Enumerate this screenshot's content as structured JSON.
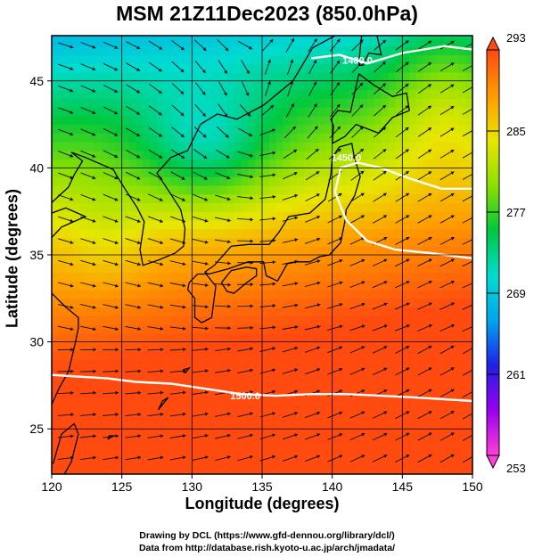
{
  "chart_data": {
    "type": "heatmap",
    "title": "MSM 21Z11Dec2023 (850.0hPa)",
    "xlabel": "Longitude (degrees)",
    "ylabel": "Latitude  (degrees)",
    "xlim": [
      120,
      150
    ],
    "ylim": [
      22.4,
      47.6
    ],
    "x_ticks": [
      "120",
      "125",
      "130",
      "135",
      "140",
      "145",
      "150"
    ],
    "y_ticks": [
      "25",
      "30",
      "35",
      "40",
      "45"
    ],
    "colorbar": {
      "min": 253,
      "max": 293,
      "ticks": [
        "253",
        "261",
        "269",
        "277",
        "285",
        "293"
      ],
      "colors": [
        "#ff3fd8",
        "#9a00ee",
        "#2020e6",
        "#00a6ee",
        "#00dccf",
        "#00c83c",
        "#8ee000",
        "#e8e600",
        "#ff9a00",
        "#ff4a10"
      ]
    },
    "contours": [
      {
        "label": "1400.0"
      },
      {
        "label": "1450.0"
      },
      {
        "label": "1500.0"
      }
    ],
    "grid": true,
    "has_streamlines": true,
    "has_coastlines": true
  },
  "credits": {
    "line1": "Drawing by DCL (https://www.gfd-dennou.org/library/dcl/)",
    "line2": "Data from http://database.rish.kyoto-u.ac.jp/arch/jmadata/"
  }
}
